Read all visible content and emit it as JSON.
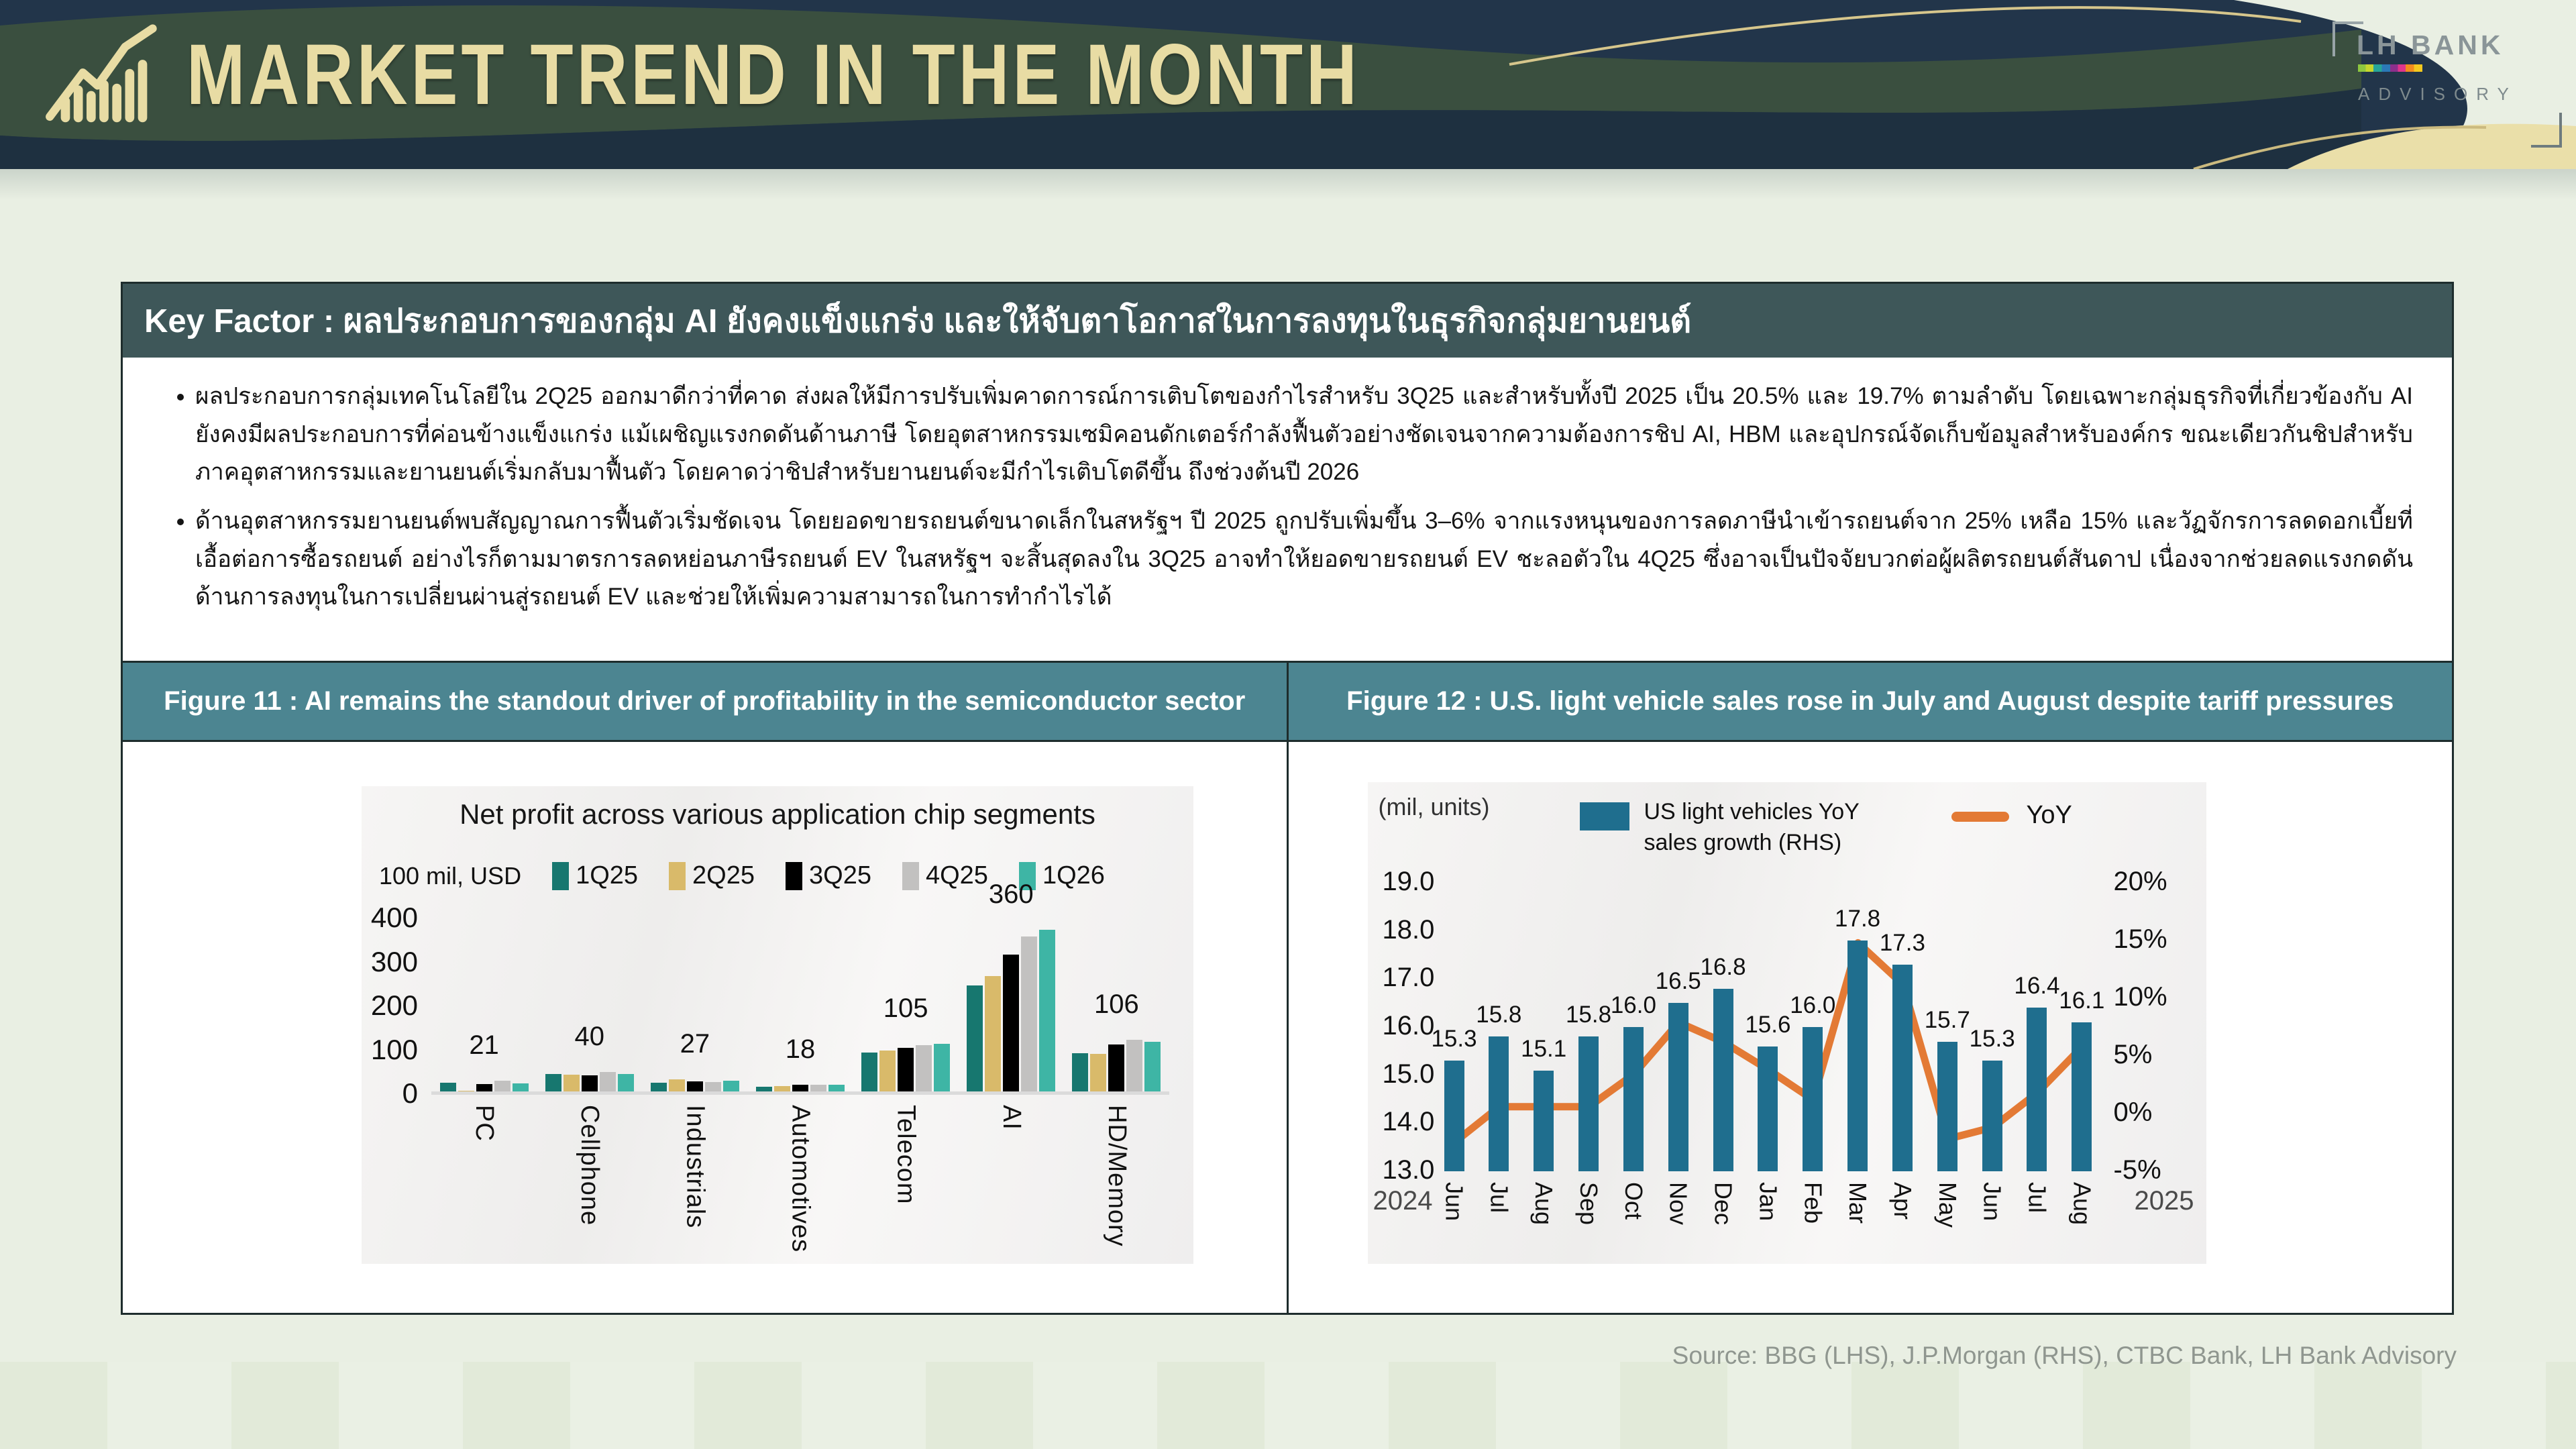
{
  "header": {
    "title": "MARKET TREND IN THE MONTH",
    "logo": {
      "name": "LH BANK",
      "subtitle": "ADVISORY"
    }
  },
  "key_factor": {
    "title": "Key Factor : ผลประกอบการของกลุ่ม AI ยังคงแข็งแกร่ง และให้จับตาโอกาสในการลงทุนในธุรกิจกลุ่มยานยนต์",
    "bullets": [
      "ผลประกอบการกลุ่มเทคโนโลยีใน 2Q25 ออกมาดีกว่าที่คาด ส่งผลให้มีการปรับเพิ่มคาดการณ์การเติบโตของกำไรสำหรับ 3Q25 และสำหรับทั้งปี 2025 เป็น 20.5% และ 19.7% ตามลำดับ โดยเฉพาะกลุ่มธุรกิจที่เกี่ยวข้องกับ AI ยังคงมีผลประกอบการที่ค่อนข้างแข็งแกร่ง แม้เผชิญแรงกดดันด้านภาษี โดยอุตสาหกรรมเซมิคอนดักเตอร์กำลังฟื้นตัวอย่างชัดเจนจากความต้องการชิป AI, HBM และอุปกรณ์จัดเก็บข้อมูลสำหรับองค์กร ขณะเดียวกันชิปสำหรับภาคอุตสาหกรรมและยานยนต์เริ่มกลับมาฟื้นตัว โดยคาดว่าชิปสำหรับยานยนต์จะมีกำไรเติบโตดีขึ้น ถึงช่วงต้นปี 2026",
      "ด้านอุตสาหกรรมยานยนต์พบสัญญาณการฟื้นตัวเริ่มชัดเจน โดยยอดขายรถยนต์ขนาดเล็กในสหรัฐฯ ปี 2025 ถูกปรับเพิ่มขึ้น 3–6% จากแรงหนุนของการลดภาษีนำเข้ารถยนต์จาก 25% เหลือ 15% และวัฏจักรการลดดอกเบี้ยที่เอื้อต่อการซื้อรถยนต์ อย่างไรก็ตามมาตรการลดหย่อนภาษีรถยนต์ EV ในสหรัฐฯ จะสิ้นสุดลงใน 3Q25 อาจทำให้ยอดขายรถยนต์ EV ชะลอตัวใน 4Q25 ซึ่งอาจเป็นปัจจัยบวกต่อผู้ผลิตรถยนต์สันดาป เนื่องจากช่วยลดแรงกดดันด้านการลงทุนในการเปลี่ยนผ่านสู่รถยนต์ EV และช่วยให้เพิ่มความสามารถในการทำกำไรได้"
    ]
  },
  "figures": [
    {
      "title": "Figure 11 : AI remains the standout driver of profitability in the semiconductor sector"
    },
    {
      "title": "Figure 12 : U.S. light vehicle sales rose in July and August despite tariff pressures"
    }
  ],
  "chart_data": [
    {
      "type": "bar",
      "title": "Net profit across various application chip segments",
      "unit_label": "100 mil, USD",
      "categories": [
        "PC",
        "Cellphone",
        "Industrials",
        "Automotives",
        "Telecom",
        "AI",
        "HD/Memory"
      ],
      "series": [
        {
          "name": "1Q25",
          "values": [
            20,
            40,
            20,
            11,
            88,
            242,
            87
          ]
        },
        {
          "name": "2Q25",
          "values": [
            2,
            38,
            27,
            12,
            93,
            263,
            85
          ]
        },
        {
          "name": "3Q25",
          "values": [
            17,
            37,
            23,
            16,
            100,
            312,
            107
          ]
        },
        {
          "name": "4Q25",
          "values": [
            24,
            44,
            22,
            15,
            105,
            352,
            117
          ]
        },
        {
          "name": "1Q26",
          "values": [
            19,
            39,
            25,
            15,
            109,
            368,
            113
          ]
        }
      ],
      "group_labels": [
        "21",
        "40",
        "27",
        "18",
        "105",
        "360",
        "106"
      ],
      "ylim": [
        0,
        400
      ],
      "yticks": [
        0,
        100,
        200,
        300,
        400
      ],
      "grid": false,
      "legend_position": "top"
    },
    {
      "type": "bar+line",
      "unit_label": "(mil, units)",
      "x": [
        "Jun",
        "Jul",
        "Aug",
        "Sep",
        "Oct",
        "Nov",
        "Dec",
        "Jan",
        "Feb",
        "Mar",
        "Apr",
        "May",
        "Jun",
        "Jul",
        "Aug"
      ],
      "year_left": "2024",
      "year_right": "2025",
      "bars": {
        "name": "US light vehicles YoY sales growth (RHS)",
        "values": [
          15.3,
          15.8,
          15.1,
          15.8,
          16.0,
          16.5,
          16.8,
          15.6,
          16.0,
          17.8,
          17.3,
          15.7,
          15.3,
          16.4,
          16.1
        ],
        "labels": [
          "15.3",
          "15.8",
          "15.1",
          "15.8",
          "16.0",
          "16.5",
          "16.8",
          "15.6",
          "16.0",
          "17.8",
          "17.3",
          "15.7",
          "15.3",
          "16.4",
          "16.1"
        ]
      },
      "line": {
        "name": "YoY",
        "values_pct": [
          -2.5,
          0.6,
          0.6,
          0.6,
          3.4,
          7.9,
          6.2,
          3.8,
          1.2,
          14.8,
          11.2,
          -2.2,
          -1.2,
          1.8,
          5.8
        ]
      },
      "ylim_left": [
        13.0,
        19.0
      ],
      "yticks_left": [
        "19.0",
        "18.0",
        "17.0",
        "16.0",
        "15.0",
        "14.0",
        "13.0"
      ],
      "ylim_right": [
        -5,
        20
      ],
      "yticks_right": [
        "20%",
        "15%",
        "10%",
        "5%",
        "0%",
        "-5%"
      ],
      "grid": false,
      "legend_position": "top"
    }
  ],
  "source": "Source: BBG (LHS), J.P.Morgan (RHS), CTBC Bank, LH Bank Advisory",
  "colors": {
    "page_bg": "#E9EFE3",
    "header_navy": "#22354A",
    "header_green": "#3A4F3F",
    "header_gold": "#E8DCA4",
    "key_factor_bar": "#3E5759",
    "figure_title_bar": "#4C8591",
    "f11_series": [
      "#17776F",
      "#D9BA6A",
      "#000000",
      "#C2C1C0",
      "#3EB5A5"
    ],
    "f12_bar": "#1F6E8E",
    "f12_line": "#E37A35",
    "source_text": "#8F968F"
  }
}
